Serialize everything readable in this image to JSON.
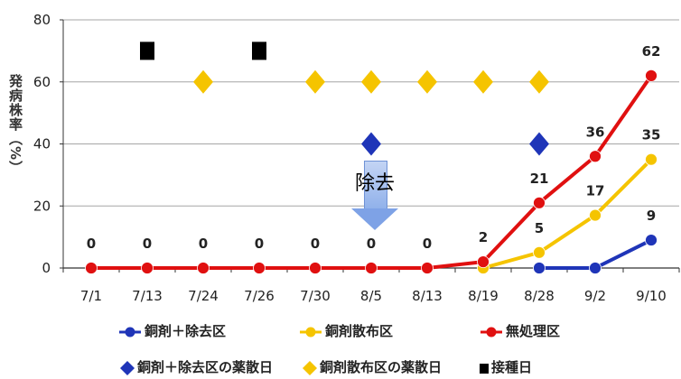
{
  "chart_data": {
    "type": "line",
    "ylabel": "発病株率（%）",
    "ylim": [
      0,
      80
    ],
    "yticks": [
      "0",
      "20",
      "40",
      "60",
      "80"
    ],
    "categories": [
      "7/1",
      "7/13",
      "7/24",
      "7/26",
      "7/30",
      "8/5",
      "8/13",
      "8/19",
      "8/28",
      "9/2",
      "9/10"
    ],
    "series": [
      {
        "name": "銅剤＋除去区",
        "color": "#1f35b8",
        "values": [
          null,
          null,
          null,
          null,
          null,
          null,
          null,
          null,
          0,
          0,
          9
        ],
        "labels": [
          null,
          null,
          null,
          null,
          null,
          null,
          null,
          null,
          null,
          null,
          "9"
        ]
      },
      {
        "name": "銅剤散布区",
        "color": "#f5c400",
        "values": [
          null,
          null,
          null,
          null,
          null,
          null,
          null,
          0,
          5,
          17,
          35
        ],
        "labels": [
          null,
          null,
          null,
          null,
          null,
          null,
          null,
          null,
          "5",
          "17",
          "35"
        ]
      },
      {
        "name": "無処理区",
        "color": "#e01010",
        "values": [
          0,
          0,
          0,
          0,
          0,
          0,
          0,
          2,
          21,
          36,
          62
        ],
        "labels": [
          "0",
          "0",
          "0",
          "0",
          "0",
          "0",
          "0",
          "2",
          "21",
          "36",
          "62"
        ]
      }
    ],
    "events": [
      {
        "name": "銅剤＋除去区の薬散日",
        "color": "#1f35b8",
        "marker": "diamond",
        "y": 40,
        "dates": [
          "8/5",
          "8/28"
        ]
      },
      {
        "name": "銅剤散布区の薬散日",
        "color": "#f5c400",
        "marker": "diamond",
        "y": 60,
        "dates": [
          "7/24",
          "7/30",
          "8/5",
          "8/13",
          "8/19",
          "8/28"
        ]
      },
      {
        "name": "接種日",
        "color": "#000000",
        "marker": "square",
        "y": 70,
        "dates": [
          "7/13",
          "7/26"
        ]
      }
    ],
    "annotation": {
      "text": "除去",
      "date": "8/5"
    },
    "legend_position": "bottom"
  }
}
